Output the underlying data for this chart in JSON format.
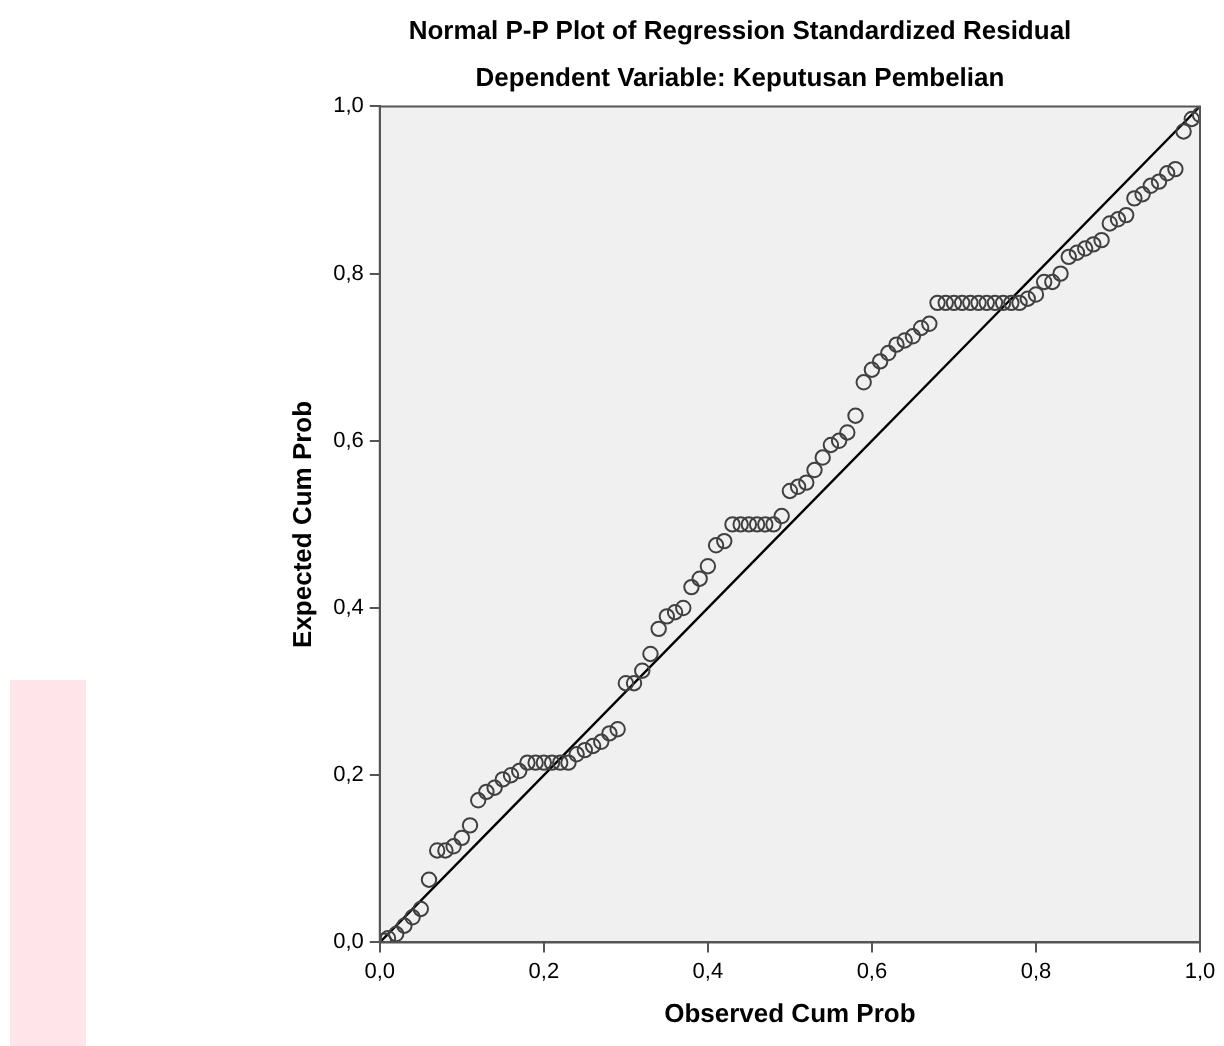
{
  "chart_data": {
    "type": "scatter",
    "title": "Normal P-P Plot of Regression Standardized Residual",
    "subtitle": "Dependent Variable: Keputusan Pembelian",
    "xlabel": "Observed Cum Prob",
    "ylabel": "Expected Cum Prob",
    "xlim": [
      0,
      1
    ],
    "ylim": [
      0,
      1
    ],
    "xticks": [
      {
        "value": 0,
        "label": "0,0"
      },
      {
        "value": 0.2,
        "label": "0,2"
      },
      {
        "value": 0.4,
        "label": "0,4"
      },
      {
        "value": 0.6,
        "label": "0,6"
      },
      {
        "value": 0.8,
        "label": "0,8"
      },
      {
        "value": 1,
        "label": "1,0"
      }
    ],
    "yticks": [
      {
        "value": 0,
        "label": "0,0"
      },
      {
        "value": 0.2,
        "label": "0,2"
      },
      {
        "value": 0.4,
        "label": "0,4"
      },
      {
        "value": 0.6,
        "label": "0,6"
      },
      {
        "value": 0.8,
        "label": "0,8"
      },
      {
        "value": 1,
        "label": "1,0"
      }
    ],
    "grid": false,
    "legend": false,
    "marker": "circle",
    "series": [
      {
        "type": "scatter",
        "color": "#404040",
        "x": [
          0.005,
          0.01,
          0.02,
          0.03,
          0.04,
          0.05,
          0.06,
          0.07,
          0.08,
          0.09,
          0.1,
          0.11,
          0.12,
          0.13,
          0.14,
          0.15,
          0.16,
          0.17,
          0.18,
          0.19,
          0.2,
          0.21,
          0.22,
          0.23,
          0.24,
          0.25,
          0.26,
          0.27,
          0.28,
          0.29,
          0.3,
          0.31,
          0.32,
          0.33,
          0.34,
          0.35,
          0.36,
          0.37,
          0.38,
          0.39,
          0.4,
          0.41,
          0.42,
          0.43,
          0.44,
          0.45,
          0.46,
          0.47,
          0.48,
          0.49,
          0.5,
          0.51,
          0.52,
          0.53,
          0.54,
          0.55,
          0.56,
          0.57,
          0.58,
          0.59,
          0.6,
          0.61,
          0.62,
          0.63,
          0.64,
          0.65,
          0.66,
          0.67,
          0.68,
          0.69,
          0.7,
          0.71,
          0.72,
          0.73,
          0.74,
          0.75,
          0.76,
          0.77,
          0.78,
          0.79,
          0.8,
          0.81,
          0.82,
          0.83,
          0.84,
          0.85,
          0.86,
          0.87,
          0.88,
          0.89,
          0.9,
          0.91,
          0.92,
          0.93,
          0.94,
          0.95,
          0.96,
          0.97,
          0.98,
          0.99,
          1.0
        ],
        "values": [
          0.002,
          0.005,
          0.01,
          0.02,
          0.03,
          0.04,
          0.075,
          0.11,
          0.11,
          0.115,
          0.125,
          0.14,
          0.17,
          0.18,
          0.185,
          0.195,
          0.2,
          0.205,
          0.215,
          0.215,
          0.215,
          0.215,
          0.215,
          0.215,
          0.225,
          0.23,
          0.235,
          0.24,
          0.25,
          0.255,
          0.31,
          0.31,
          0.325,
          0.345,
          0.375,
          0.39,
          0.395,
          0.4,
          0.425,
          0.435,
          0.45,
          0.475,
          0.48,
          0.5,
          0.5,
          0.5,
          0.5,
          0.5,
          0.5,
          0.51,
          0.54,
          0.545,
          0.55,
          0.565,
          0.58,
          0.595,
          0.6,
          0.61,
          0.63,
          0.67,
          0.685,
          0.695,
          0.705,
          0.715,
          0.72,
          0.725,
          0.735,
          0.74,
          0.765,
          0.765,
          0.765,
          0.765,
          0.765,
          0.765,
          0.765,
          0.765,
          0.765,
          0.765,
          0.765,
          0.77,
          0.775,
          0.79,
          0.79,
          0.8,
          0.82,
          0.825,
          0.83,
          0.835,
          0.84,
          0.86,
          0.865,
          0.87,
          0.89,
          0.895,
          0.905,
          0.91,
          0.92,
          0.925,
          0.97,
          0.985,
          0.99
        ]
      },
      {
        "type": "line",
        "color": "#000000",
        "marker": "none",
        "x": [
          0,
          1
        ],
        "values": [
          0,
          1
        ]
      }
    ]
  }
}
